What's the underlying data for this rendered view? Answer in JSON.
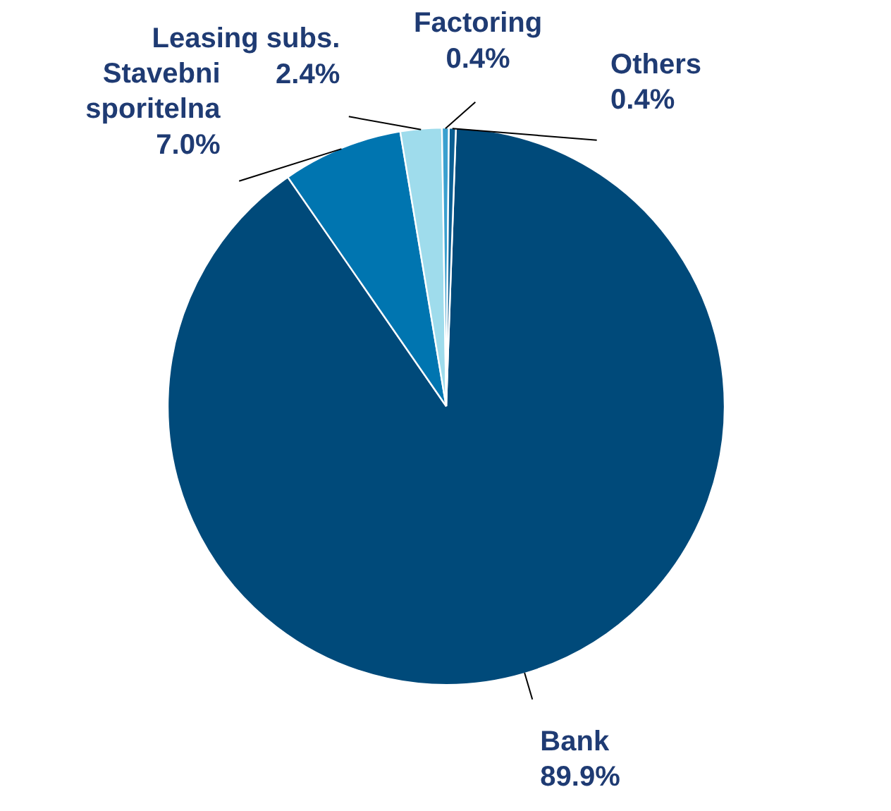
{
  "chart_data": {
    "type": "pie",
    "categories": [
      "Bank",
      "Stavebni sporitelna",
      "Leasing subs.",
      "Factoring",
      "Others"
    ],
    "values": [
      89.9,
      7.0,
      2.4,
      0.4,
      0.4
    ],
    "colors": [
      "#004a7a",
      "#0075b0",
      "#9fdcec",
      "#3aa0cf",
      "#0b5e92"
    ],
    "value_labels": [
      "89.9%",
      "7.0%",
      "2.4%",
      "0.4%",
      "0.4%"
    ]
  }
}
